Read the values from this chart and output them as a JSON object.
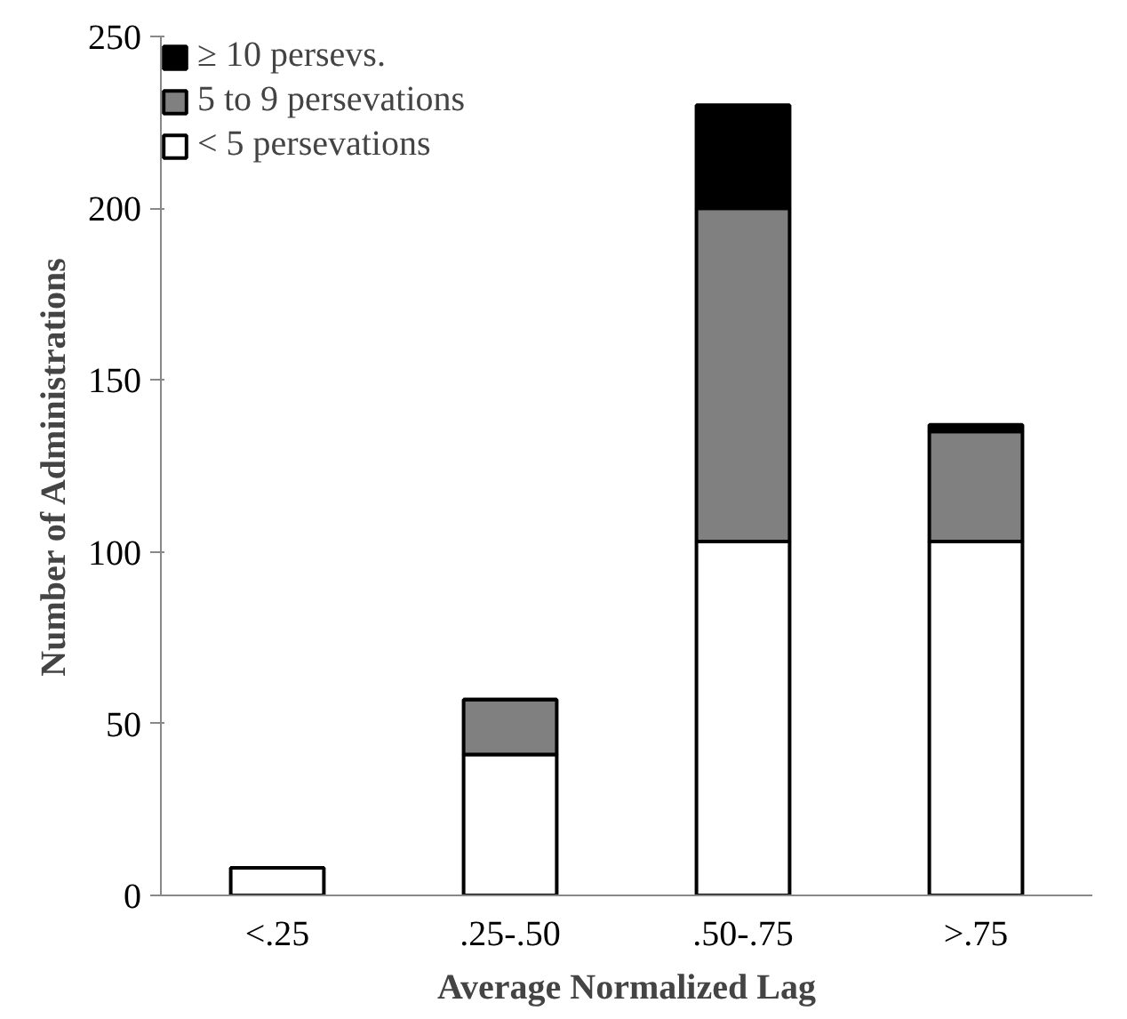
{
  "chart_data": {
    "type": "bar",
    "stacked": true,
    "xlabel": "Average Normalized Lag",
    "ylabel": "Number of Administrations",
    "categories": [
      "<.25",
      ".25-.50",
      ".50-.75",
      ">.75"
    ],
    "series": [
      {
        "name": "< 5 persevations",
        "color": "#ffffff",
        "values": [
          8,
          41,
          103,
          103
        ]
      },
      {
        "name": "5 to 9 persevations",
        "color": "#808080",
        "values": [
          0,
          16,
          97,
          32
        ]
      },
      {
        "name": "≥ 10 persevs.",
        "color": "#000000",
        "values": [
          0,
          0,
          30,
          2
        ]
      }
    ],
    "ylim": [
      0,
      250
    ],
    "yticks": [
      0,
      50,
      100,
      150,
      200,
      250
    ],
    "grid": false,
    "legend": "top left"
  }
}
